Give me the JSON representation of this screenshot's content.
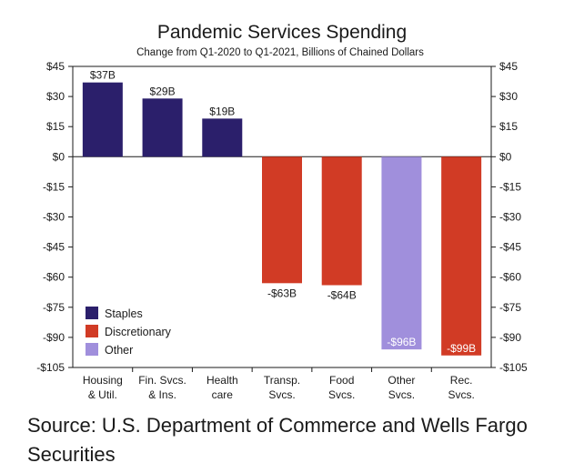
{
  "source": "Source: U.S. Department of Commerce and Wells Fargo Securities",
  "chart_data": {
    "type": "bar",
    "title": "Pandemic Services Spending",
    "subtitle": "Change from Q1-2020 to Q1-2021, Billions of Chained Dollars",
    "categories": [
      [
        "Housing",
        "& Util."
      ],
      [
        "Fin. Svcs.",
        "& Ins."
      ],
      [
        "Health",
        "care"
      ],
      [
        "Transp.",
        "Svcs."
      ],
      [
        "Food",
        "Svcs."
      ],
      [
        "Other",
        "Svcs."
      ],
      [
        "Rec.",
        "Svcs."
      ]
    ],
    "values": [
      37,
      29,
      19,
      -63,
      -64,
      -96,
      -99
    ],
    "data_labels": [
      "$37B",
      "$29B",
      "$19B",
      "-$63B",
      "-$64B",
      "-$96B",
      "-$99B"
    ],
    "groups": [
      "Staples",
      "Staples",
      "Staples",
      "Discretionary",
      "Discretionary",
      "Other",
      "Discretionary"
    ],
    "legend": [
      {
        "name": "Staples",
        "color": "#2b1f6b"
      },
      {
        "name": "Discretionary",
        "color": "#d13b25"
      },
      {
        "name": "Other",
        "color": "#a08fdc"
      }
    ],
    "legend_position": "bottom-left",
    "ylim": [
      -105,
      45
    ],
    "yticks": [
      45,
      30,
      15,
      0,
      -15,
      -30,
      -45,
      -60,
      -75,
      -90,
      -105
    ],
    "ytick_labels": [
      "$45",
      "$30",
      "$15",
      "$0",
      "-$15",
      "-$30",
      "-$45",
      "-$60",
      "-$75",
      "-$90",
      "-$105"
    ],
    "grid": false,
    "xlabel": "",
    "ylabel": ""
  }
}
